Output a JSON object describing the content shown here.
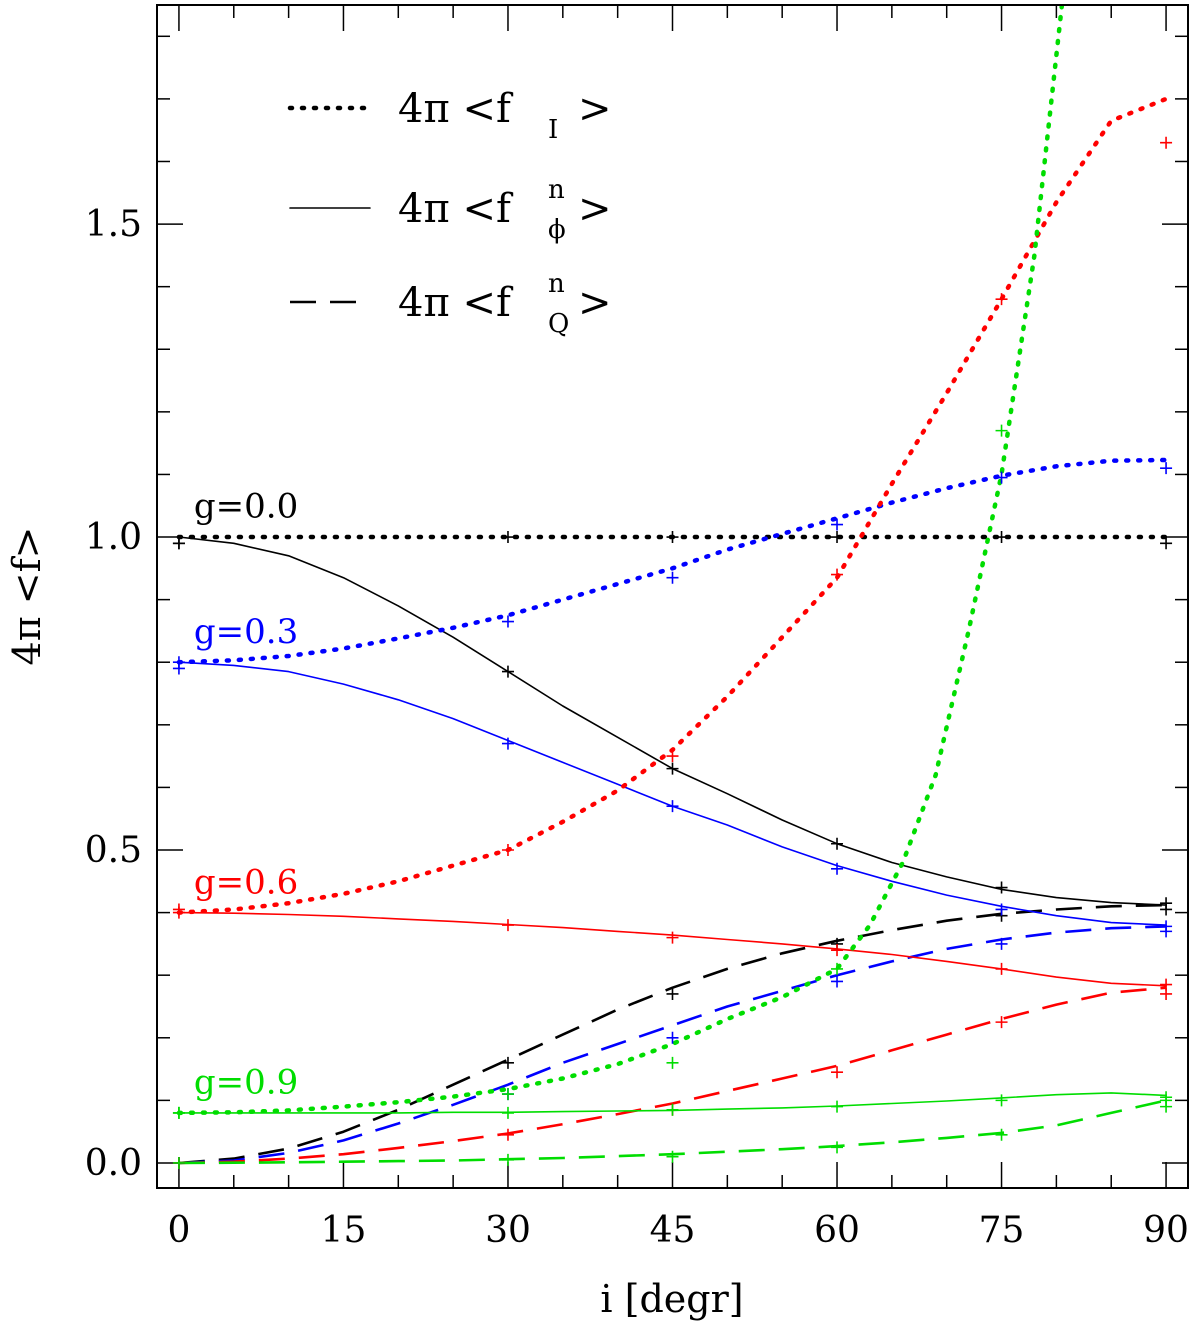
{
  "chart_data": {
    "type": "line",
    "xlabel": "i [degr]",
    "ylabel": "4π <f>",
    "xlim": [
      -2,
      92
    ],
    "ylim": [
      -0.04,
      1.85
    ],
    "x_ticks": [
      0,
      15,
      30,
      45,
      60,
      75,
      90
    ],
    "x_tick_labels": [
      "0",
      "15",
      "30",
      "45",
      "60",
      "75",
      "90"
    ],
    "y_ticks": [
      0.0,
      0.5,
      1.0,
      1.5
    ],
    "y_tick_labels": [
      "0.0",
      "0.5",
      "1.0",
      "1.5"
    ],
    "x_minor_step": 5,
    "y_minor_step": 0.1,
    "grid": false,
    "legend": {
      "position": "top-left",
      "entries": [
        {
          "style": "dotted",
          "prefix": "4π <f",
          "sub": "I",
          "sup": "",
          "suffix": ">"
        },
        {
          "style": "solid",
          "prefix": "4π <f",
          "sub": "ϕ",
          "sup": "n",
          "suffix": ">"
        },
        {
          "style": "dashed",
          "prefix": "4π <f",
          "sub": "Q",
          "sup": "n",
          "suffix": ">"
        }
      ]
    },
    "group_labels": [
      {
        "text": "g=0.0",
        "color": "#000000",
        "x": 1,
        "y": 1.05
      },
      {
        "text": "g=0.3",
        "color": "#0000ff",
        "x": 1,
        "y": 0.85
      },
      {
        "text": "g=0.6",
        "color": "#ff0000",
        "x": 1,
        "y": 0.45
      },
      {
        "text": "g=0.9",
        "color": "#00dd00",
        "x": 1,
        "y": 0.13
      }
    ],
    "series": [
      {
        "g": "0.0",
        "kind": "I",
        "color": "#000000",
        "x": [
          0,
          15,
          30,
          45,
          60,
          75,
          90
        ],
        "y": [
          1.0,
          1.0,
          1.0,
          1.0,
          1.0,
          1.0,
          1.0
        ]
      },
      {
        "g": "0.0",
        "kind": "phi",
        "color": "#000000",
        "x": [
          0,
          5,
          10,
          15,
          20,
          25,
          30,
          35,
          40,
          45,
          50,
          55,
          60,
          65,
          70,
          75,
          80,
          85,
          90
        ],
        "y": [
          1.0,
          0.99,
          0.97,
          0.935,
          0.89,
          0.84,
          0.785,
          0.73,
          0.68,
          0.63,
          0.59,
          0.548,
          0.51,
          0.48,
          0.457,
          0.437,
          0.424,
          0.416,
          0.412
        ]
      },
      {
        "g": "0.0",
        "kind": "Q",
        "color": "#000000",
        "x": [
          0,
          5,
          10,
          15,
          20,
          25,
          30,
          35,
          40,
          45,
          50,
          55,
          60,
          65,
          70,
          75,
          80,
          85,
          90
        ],
        "y": [
          0.0,
          0.007,
          0.023,
          0.05,
          0.085,
          0.125,
          0.165,
          0.205,
          0.245,
          0.28,
          0.31,
          0.335,
          0.355,
          0.372,
          0.387,
          0.398,
          0.405,
          0.41,
          0.412
        ]
      },
      {
        "g": "0.3",
        "kind": "I",
        "color": "#0000ff",
        "x": [
          0,
          5,
          10,
          15,
          20,
          25,
          30,
          35,
          40,
          45,
          50,
          55,
          60,
          65,
          70,
          75,
          80,
          85,
          90
        ],
        "y": [
          0.8,
          0.803,
          0.81,
          0.822,
          0.838,
          0.855,
          0.875,
          0.9,
          0.925,
          0.95,
          0.98,
          1.005,
          1.03,
          1.055,
          1.078,
          1.098,
          1.113,
          1.122,
          1.123
        ]
      },
      {
        "g": "0.3",
        "kind": "phi",
        "color": "#0000ff",
        "x": [
          0,
          5,
          10,
          15,
          20,
          25,
          30,
          35,
          40,
          45,
          50,
          55,
          60,
          65,
          70,
          75,
          80,
          85,
          90
        ],
        "y": [
          0.8,
          0.795,
          0.785,
          0.765,
          0.74,
          0.71,
          0.675,
          0.64,
          0.605,
          0.57,
          0.54,
          0.505,
          0.475,
          0.45,
          0.428,
          0.41,
          0.395,
          0.384,
          0.38
        ]
      },
      {
        "g": "0.3",
        "kind": "Q",
        "color": "#0000ff",
        "x": [
          0,
          5,
          10,
          15,
          20,
          25,
          30,
          35,
          40,
          45,
          50,
          55,
          60,
          65,
          70,
          75,
          80,
          85,
          90
        ],
        "y": [
          0.0,
          0.004,
          0.016,
          0.036,
          0.063,
          0.093,
          0.125,
          0.16,
          0.19,
          0.22,
          0.25,
          0.275,
          0.3,
          0.322,
          0.342,
          0.357,
          0.368,
          0.375,
          0.378
        ]
      },
      {
        "g": "0.6",
        "kind": "I",
        "color": "#ff0000",
        "x": [
          0,
          5,
          10,
          15,
          20,
          25,
          30,
          35,
          40,
          45,
          50,
          55,
          60,
          65,
          70,
          75,
          80,
          85,
          90
        ],
        "y": [
          0.4,
          0.405,
          0.415,
          0.43,
          0.45,
          0.475,
          0.5,
          0.545,
          0.595,
          0.66,
          0.745,
          0.84,
          0.935,
          1.085,
          1.23,
          1.38,
          1.535,
          1.665,
          1.7
        ]
      },
      {
        "g": "0.6",
        "kind": "phi",
        "color": "#ff0000",
        "x": [
          0,
          5,
          10,
          15,
          20,
          25,
          30,
          35,
          40,
          45,
          50,
          55,
          60,
          65,
          70,
          75,
          80,
          85,
          90
        ],
        "y": [
          0.4,
          0.399,
          0.397,
          0.394,
          0.39,
          0.386,
          0.381,
          0.376,
          0.37,
          0.364,
          0.357,
          0.35,
          0.342,
          0.333,
          0.322,
          0.31,
          0.297,
          0.287,
          0.283
        ]
      },
      {
        "g": "0.6",
        "kind": "Q",
        "color": "#ff0000",
        "x": [
          0,
          5,
          10,
          15,
          20,
          25,
          30,
          35,
          40,
          45,
          50,
          55,
          60,
          65,
          70,
          75,
          80,
          85,
          90
        ],
        "y": [
          0.0,
          0.002,
          0.007,
          0.014,
          0.024,
          0.035,
          0.047,
          0.062,
          0.078,
          0.095,
          0.115,
          0.135,
          0.155,
          0.18,
          0.205,
          0.23,
          0.253,
          0.272,
          0.28
        ]
      },
      {
        "g": "0.9",
        "kind": "I",
        "color": "#00dd00",
        "x": [
          0,
          5,
          10,
          15,
          20,
          25,
          30,
          35,
          40,
          45,
          50,
          55,
          60,
          63,
          66,
          69,
          72,
          75,
          78,
          80.5
        ],
        "y": [
          0.08,
          0.081,
          0.084,
          0.09,
          0.097,
          0.106,
          0.118,
          0.135,
          0.158,
          0.19,
          0.23,
          0.265,
          0.31,
          0.38,
          0.48,
          0.62,
          0.85,
          1.1,
          1.45,
          1.85
        ]
      },
      {
        "g": "0.9",
        "kind": "phi",
        "color": "#00dd00",
        "x": [
          0,
          5,
          10,
          15,
          20,
          25,
          30,
          35,
          40,
          45,
          50,
          55,
          60,
          65,
          70,
          75,
          80,
          85,
          90
        ],
        "y": [
          0.08,
          0.08,
          0.08,
          0.08,
          0.08,
          0.081,
          0.081,
          0.082,
          0.083,
          0.084,
          0.086,
          0.088,
          0.091,
          0.095,
          0.099,
          0.104,
          0.109,
          0.112,
          0.108
        ]
      },
      {
        "g": "0.9",
        "kind": "Q",
        "color": "#00dd00",
        "x": [
          0,
          5,
          10,
          15,
          20,
          25,
          30,
          35,
          40,
          45,
          50,
          55,
          60,
          65,
          70,
          75,
          80,
          85,
          90
        ],
        "y": [
          0.0,
          0.0005,
          0.001,
          0.002,
          0.003,
          0.004,
          0.006,
          0.008,
          0.011,
          0.014,
          0.018,
          0.022,
          0.027,
          0.033,
          0.04,
          0.048,
          0.06,
          0.08,
          0.1
        ]
      }
    ],
    "markers": [
      {
        "color": "#000000",
        "x": [
          0,
          30,
          45,
          60,
          75,
          90
        ],
        "y": [
          0.99,
          1.0,
          1.0,
          1.0,
          1.0,
          0.99
        ]
      },
      {
        "color": "#000000",
        "x": [
          0,
          30,
          45,
          60,
          75,
          90
        ],
        "y": [
          0.99,
          0.785,
          0.63,
          0.51,
          0.44,
          0.415
        ]
      },
      {
        "color": "#000000",
        "x": [
          0,
          30,
          45,
          60,
          75,
          90
        ],
        "y": [
          0.0,
          0.16,
          0.27,
          0.35,
          0.395,
          0.405
        ]
      },
      {
        "color": "#0000ff",
        "x": [
          0,
          30,
          45,
          60,
          75,
          90
        ],
        "y": [
          0.79,
          0.865,
          0.935,
          1.02,
          1.095,
          1.11
        ]
      },
      {
        "color": "#0000ff",
        "x": [
          0,
          30,
          45,
          60,
          75,
          90
        ],
        "y": [
          0.8,
          0.67,
          0.57,
          0.47,
          0.405,
          0.37
        ]
      },
      {
        "color": "#0000ff",
        "x": [
          0,
          30,
          45,
          60,
          75,
          90
        ],
        "y": [
          0.0,
          0.11,
          0.2,
          0.29,
          0.35,
          0.378
        ]
      },
      {
        "color": "#ff0000",
        "x": [
          0,
          30,
          45,
          60,
          75,
          90
        ],
        "y": [
          0.405,
          0.5,
          0.65,
          0.94,
          1.38,
          1.63
        ]
      },
      {
        "color": "#ff0000",
        "x": [
          0,
          30,
          45,
          60,
          75,
          90
        ],
        "y": [
          0.4,
          0.38,
          0.36,
          0.34,
          0.31,
          0.285
        ]
      },
      {
        "color": "#ff0000",
        "x": [
          0,
          30,
          45,
          60,
          75,
          90
        ],
        "y": [
          0.0,
          0.045,
          0.085,
          0.145,
          0.225,
          0.27
        ]
      },
      {
        "color": "#00dd00",
        "x": [
          0,
          30,
          45,
          60,
          75,
          90
        ],
        "y": [
          0.08,
          0.11,
          0.16,
          0.31,
          1.17,
          0.105
        ]
      },
      {
        "color": "#00dd00",
        "x": [
          0,
          30,
          45,
          60,
          75,
          90
        ],
        "y": [
          0.08,
          0.08,
          0.085,
          0.09,
          0.1,
          0.09
        ]
      },
      {
        "color": "#00dd00",
        "x": [
          0,
          30,
          45,
          60,
          75,
          90
        ],
        "y": [
          0.0,
          0.005,
          0.01,
          0.025,
          0.045,
          0.1
        ]
      }
    ]
  }
}
